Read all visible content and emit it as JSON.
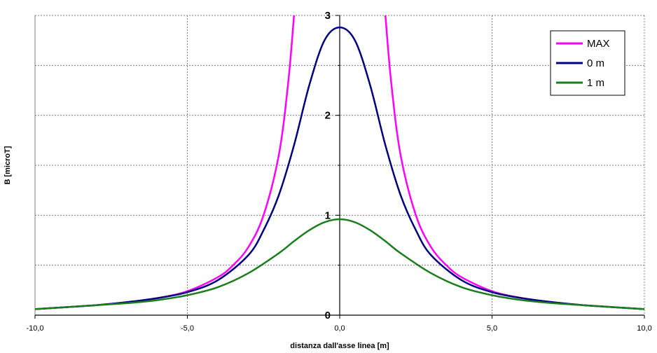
{
  "chart_data": {
    "type": "line",
    "title": "",
    "xlabel": "distanza dall'asse  linea [m]",
    "ylabel": "B [microT]",
    "xlim": [
      -10,
      10
    ],
    "ylim": [
      0,
      3
    ],
    "xticks": [
      -10,
      -5,
      0,
      5,
      10
    ],
    "xtick_labels": [
      "-10,0",
      "-5,0",
      "0,0",
      "5,0",
      "10,0"
    ],
    "yticks": [
      0,
      1,
      2,
      3
    ],
    "ytick_labels": [
      "0",
      "1",
      "2",
      "3"
    ],
    "grid": true,
    "legend_position": "top-right",
    "series": [
      {
        "name": "MAX",
        "color": "#ff00ff",
        "x": [
          -10,
          -9,
          -8,
          -7,
          -6,
          -5,
          -4,
          -3.5,
          -3,
          -2.5,
          -2,
          -1.7,
          -1.5,
          1.5,
          1.7,
          2,
          2.5,
          3,
          3.5,
          4,
          5,
          6,
          7,
          8,
          9,
          10
        ],
        "y": [
          0.06,
          0.08,
          0.1,
          0.13,
          0.17,
          0.24,
          0.38,
          0.5,
          0.68,
          1.0,
          1.6,
          2.3,
          3.0,
          3.0,
          2.3,
          1.6,
          1.0,
          0.68,
          0.5,
          0.38,
          0.24,
          0.17,
          0.13,
          0.1,
          0.08,
          0.06
        ]
      },
      {
        "name": "0 m",
        "color": "#000080",
        "x": [
          -10,
          -9,
          -8,
          -7,
          -6,
          -5,
          -4,
          -3,
          -2.5,
          -2,
          -1.5,
          -1,
          -0.5,
          0,
          0.5,
          1,
          1.5,
          2,
          2.5,
          3,
          4,
          5,
          6,
          7,
          8,
          9,
          10
        ],
        "y": [
          0.06,
          0.08,
          0.1,
          0.13,
          0.17,
          0.23,
          0.35,
          0.6,
          0.85,
          1.2,
          1.7,
          2.3,
          2.75,
          2.88,
          2.75,
          2.3,
          1.7,
          1.2,
          0.85,
          0.6,
          0.35,
          0.23,
          0.17,
          0.13,
          0.1,
          0.08,
          0.06
        ]
      },
      {
        "name": "1 m",
        "color": "#1b7d1b",
        "x": [
          -10,
          -9,
          -8,
          -7,
          -6,
          -5,
          -4,
          -3,
          -2,
          -1.5,
          -1,
          -0.5,
          0,
          0.5,
          1,
          1.5,
          2,
          3,
          4,
          5,
          6,
          7,
          8,
          9,
          10
        ],
        "y": [
          0.06,
          0.08,
          0.1,
          0.12,
          0.15,
          0.2,
          0.28,
          0.42,
          0.62,
          0.74,
          0.85,
          0.93,
          0.96,
          0.93,
          0.85,
          0.74,
          0.62,
          0.42,
          0.28,
          0.2,
          0.15,
          0.12,
          0.1,
          0.08,
          0.06
        ]
      }
    ]
  }
}
